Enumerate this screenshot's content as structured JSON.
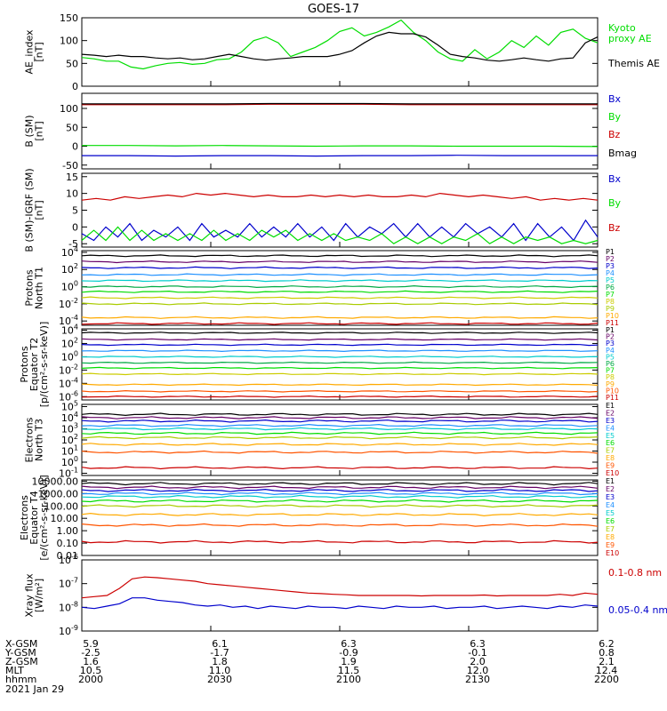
{
  "title": "GOES-17",
  "colors": {
    "black": "#000000",
    "green": "#00dd00",
    "blue": "#0000cc",
    "red": "#cc0000"
  },
  "chart_data": [
    {
      "type": "line",
      "ylabel": "AE_index\n[nT]",
      "ylim": [
        0,
        150
      ],
      "yticks": [
        "0",
        "50",
        "100",
        "150"
      ],
      "series": [
        {
          "name": "Kyoto\nproxy AE",
          "color": "#00dd00",
          "values": [
            63,
            60,
            55,
            55,
            42,
            38,
            45,
            50,
            52,
            48,
            50,
            58,
            60,
            75,
            100,
            108,
            95,
            65,
            75,
            85,
            100,
            120,
            128,
            110,
            118,
            130,
            145,
            118,
            100,
            75,
            60,
            55,
            80,
            60,
            75,
            100,
            85,
            110,
            90,
            118,
            125,
            105,
            95
          ]
        },
        {
          "name": "Themis AE",
          "color": "#000000",
          "values": [
            70,
            68,
            65,
            68,
            65,
            65,
            62,
            60,
            62,
            58,
            60,
            65,
            70,
            65,
            60,
            57,
            60,
            62,
            65,
            65,
            65,
            70,
            78,
            95,
            110,
            118,
            115,
            115,
            108,
            90,
            70,
            65,
            62,
            57,
            55,
            58,
            62,
            58,
            55,
            60,
            62,
            95,
            108
          ]
        }
      ]
    },
    {
      "type": "line",
      "ylabel": "B (SM)\n[nT]",
      "ylim": [
        -60,
        140
      ],
      "yticks": [
        "-50",
        "0",
        "50",
        "100"
      ],
      "series": [
        {
          "name": "Bx",
          "color": "#0000cc",
          "values": [
            -25,
            -25,
            -26,
            -25,
            -25,
            -26,
            -25,
            -25,
            -24,
            -25,
            -25,
            -25
          ]
        },
        {
          "name": "By",
          "color": "#00dd00",
          "values": [
            2,
            2,
            1,
            2,
            1,
            0,
            1,
            1,
            0,
            0,
            0,
            -1
          ]
        },
        {
          "name": "Bz",
          "color": "#cc0000",
          "values": [
            110,
            110,
            110,
            110,
            111,
            111,
            111,
            110,
            110,
            110,
            110,
            110
          ]
        },
        {
          "name": "Bmag",
          "color": "#000000",
          "values": [
            112,
            112,
            112,
            112,
            113,
            113,
            113,
            112,
            112,
            112,
            112,
            112
          ]
        }
      ]
    },
    {
      "type": "line",
      "ylabel": "B (SM)-IGRF (SM)\n[nT]",
      "ylim": [
        -6,
        16
      ],
      "yticks": [
        "-5",
        "0",
        "5",
        "10",
        "15"
      ],
      "series": [
        {
          "name": "Bx",
          "color": "#0000cc",
          "values": [
            -2,
            -4,
            0,
            -3,
            1,
            -4,
            -1,
            -3,
            0,
            -4,
            1,
            -3,
            -1,
            -3,
            1,
            -3,
            0,
            -3,
            1,
            -3,
            0,
            -4,
            1,
            -3,
            0,
            -2,
            1,
            -3,
            1,
            -3,
            0,
            -3,
            1,
            -2,
            0,
            -3,
            1,
            -4,
            1,
            -3,
            0,
            -4,
            2,
            -3
          ]
        },
        {
          "name": "By",
          "color": "#00dd00",
          "values": [
            -4,
            -1,
            -4,
            0,
            -4,
            -1,
            -4,
            -2,
            -4,
            -2,
            -4,
            -1,
            -4,
            -2,
            -4,
            -1,
            -3,
            -1,
            -4,
            -2,
            -4,
            -2,
            -4,
            -3,
            -4,
            -2,
            -5,
            -3,
            -5,
            -3,
            -5,
            -3,
            -4,
            -2,
            -5,
            -3,
            -5,
            -3,
            -4,
            -3,
            -5,
            -4,
            -5,
            -4
          ]
        },
        {
          "name": "Bz",
          "color": "#cc0000",
          "values": [
            8,
            8.5,
            8,
            9,
            8.5,
            9,
            9.5,
            9,
            10,
            9.5,
            10,
            9.5,
            9,
            9.5,
            9,
            9,
            9.5,
            9,
            9.5,
            9,
            9.5,
            9,
            9,
            9.5,
            9,
            10,
            9.5,
            9,
            9.5,
            9,
            8.5,
            9,
            8,
            8.5,
            8,
            8.5,
            8
          ]
        }
      ]
    },
    {
      "type": "line",
      "ylabel": "Protons\nNorth T1",
      "log": true,
      "ylim": [
        -4.5,
        4.2
      ],
      "yticks": [
        "10^-4",
        "10^-2",
        "10^0",
        "10^2",
        "10^4"
      ],
      "series": [
        {
          "name": "P1",
          "color": "#000000",
          "level": 3.6
        },
        {
          "name": "P2",
          "color": "#660066",
          "level": 2.9
        },
        {
          "name": "P3",
          "color": "#0000cc",
          "level": 2.2
        },
        {
          "name": "P4",
          "color": "#1e90ff",
          "level": 1.4
        },
        {
          "name": "P5",
          "color": "#00cccc",
          "level": 0.7
        },
        {
          "name": "P6",
          "color": "#00aa44",
          "level": 0.0
        },
        {
          "name": "P7",
          "color": "#00dd00",
          "level": -0.6
        },
        {
          "name": "P8",
          "color": "#cccc00",
          "level": -1.3
        },
        {
          "name": "P9",
          "color": "#aacc00",
          "level": -2.0
        },
        {
          "name": "P10",
          "color": "#ffaa00",
          "level": -3.6
        },
        {
          "name": "P11",
          "color": "#cc0000",
          "level": -4.3
        }
      ]
    },
    {
      "type": "line",
      "ylabel": "Protons\nEquator T2\n[p/(cm²-s-sr-keV)]",
      "log": true,
      "ylim": [
        -6.5,
        4.2
      ],
      "yticks": [
        "10^-6",
        "10^-4",
        "10^-2",
        "10^0",
        "10^2",
        "10^4"
      ],
      "series": [
        {
          "name": "P1",
          "color": "#000000",
          "level": 3.6
        },
        {
          "name": "P2",
          "color": "#660066",
          "level": 2.6
        },
        {
          "name": "P3",
          "color": "#0000cc",
          "level": 1.8
        },
        {
          "name": "P4",
          "color": "#1e90ff",
          "level": 0.9
        },
        {
          "name": "P5",
          "color": "#00cccc",
          "level": 0.0
        },
        {
          "name": "P6",
          "color": "#00aa44",
          "level": -0.9
        },
        {
          "name": "P7",
          "color": "#00dd00",
          "level": -1.7
        },
        {
          "name": "P8",
          "color": "#cccc00",
          "level": -2.6
        },
        {
          "name": "P9",
          "color": "#ffaa00",
          "level": -4.2
        },
        {
          "name": "P10",
          "color": "#ff5500",
          "level": -5.2
        },
        {
          "name": "P11",
          "color": "#cc0000",
          "level": -6.0
        }
      ]
    },
    {
      "type": "line",
      "ylabel": "Electrons\nNorth T3",
      "log": true,
      "ylim": [
        -1.2,
        5.2
      ],
      "yticks": [
        "10^-1",
        "10^0",
        "10^1",
        "10^2",
        "10^3",
        "10^4",
        "10^5"
      ],
      "series": [
        {
          "name": "E1",
          "color": "#000000",
          "level": 4.3
        },
        {
          "name": "E2",
          "color": "#660066",
          "level": 4.0
        },
        {
          "name": "E3",
          "color": "#0000cc",
          "level": 3.7
        },
        {
          "name": "E4",
          "color": "#1e90ff",
          "level": 3.3
        },
        {
          "name": "E5",
          "color": "#00cccc",
          "level": 3.0
        },
        {
          "name": "E6",
          "color": "#00dd00",
          "level": 2.6
        },
        {
          "name": "E7",
          "color": "#aacc00",
          "level": 2.2
        },
        {
          "name": "E8",
          "color": "#ffaa00",
          "level": 1.6
        },
        {
          "name": "E9",
          "color": "#ff5500",
          "level": 0.9
        },
        {
          "name": "E10",
          "color": "#cc0000",
          "level": -0.5
        }
      ]
    },
    {
      "type": "line",
      "ylabel": "Electrons\nEquator T4\n[e/(cm²-s-sr-keV)]",
      "log": true,
      "ylim": [
        -2.0,
        4.1
      ],
      "yticks": [
        "0.01",
        "0.10",
        "1.00",
        "10.00",
        "100.00",
        "1000.00",
        "10000.00"
      ],
      "series": [
        {
          "name": "E1",
          "color": "#000000",
          "level": 3.8
        },
        {
          "name": "E2",
          "color": "#660066",
          "level": 3.5
        },
        {
          "name": "E3",
          "color": "#0000cc",
          "level": 3.25
        },
        {
          "name": "E4",
          "color": "#1e90ff",
          "level": 3.0
        },
        {
          "name": "E5",
          "color": "#00cccc",
          "level": 2.75
        },
        {
          "name": "E6",
          "color": "#00dd00",
          "level": 2.4
        },
        {
          "name": "E7",
          "color": "#aacc00",
          "level": 2.0
        },
        {
          "name": "E8",
          "color": "#ffaa00",
          "level": 1.3
        },
        {
          "name": "E9",
          "color": "#ff5500",
          "level": 0.45
        },
        {
          "name": "E10",
          "color": "#cc0000",
          "level": -0.9
        }
      ]
    },
    {
      "type": "line",
      "ylabel": "Xray flux\n[W/m²]",
      "log": true,
      "ylim": [
        -9,
        -6
      ],
      "yticks": [
        "10^-9",
        "10^-8",
        "10^-7",
        "10^-6"
      ],
      "series": [
        {
          "name": "0.1-0.8 nm",
          "color": "#cc0000",
          "values": [
            -7.6,
            -7.55,
            -7.5,
            -7.2,
            -6.8,
            -6.72,
            -6.75,
            -6.8,
            -6.85,
            -6.9,
            -7.0,
            -7.05,
            -7.1,
            -7.15,
            -7.2,
            -7.25,
            -7.3,
            -7.35,
            -7.4,
            -7.42,
            -7.45,
            -7.47,
            -7.5,
            -7.5,
            -7.5,
            -7.5,
            -7.5,
            -7.52,
            -7.5,
            -7.5,
            -7.5,
            -7.5,
            -7.48,
            -7.52,
            -7.5,
            -7.5,
            -7.5,
            -7.5,
            -7.45,
            -7.5,
            -7.4,
            -7.45
          ]
        },
        {
          "name": "0.05-0.4 nm",
          "color": "#0000cc",
          "values": [
            -8.0,
            -8.05,
            -7.95,
            -7.85,
            -7.6,
            -7.6,
            -7.7,
            -7.75,
            -7.8,
            -7.9,
            -7.95,
            -7.9,
            -8.0,
            -7.95,
            -8.05,
            -7.95,
            -8.0,
            -8.05,
            -7.95,
            -8.0,
            -8.0,
            -8.05,
            -7.95,
            -8.0,
            -8.05,
            -7.95,
            -8.0,
            -8.0,
            -7.95,
            -8.05,
            -8.0,
            -8.0,
            -7.95,
            -8.05,
            -8.0,
            -7.95,
            -8.0,
            -8.05,
            -7.95,
            -8.0,
            -7.9,
            -7.95
          ]
        }
      ]
    }
  ],
  "orbit": {
    "row_labels": [
      "X-GSM",
      "Y-GSM",
      "Z-GSM",
      "MLT",
      "hhmm"
    ],
    "columns": [
      [
        "5.9",
        "-2.5",
        "1.6",
        "10.5",
        "2000"
      ],
      [
        "6.1",
        "-1.7",
        "1.8",
        "11.0",
        "2030"
      ],
      [
        "6.3",
        "-0.9",
        "1.9",
        "11.5",
        "2100"
      ],
      [
        "6.3",
        "-0.1",
        "2.0",
        "12.0",
        "2130"
      ],
      [
        "6.2",
        "0.8",
        "2.1",
        "12.4",
        "2200"
      ]
    ],
    "date": "2021 Jan 29"
  }
}
